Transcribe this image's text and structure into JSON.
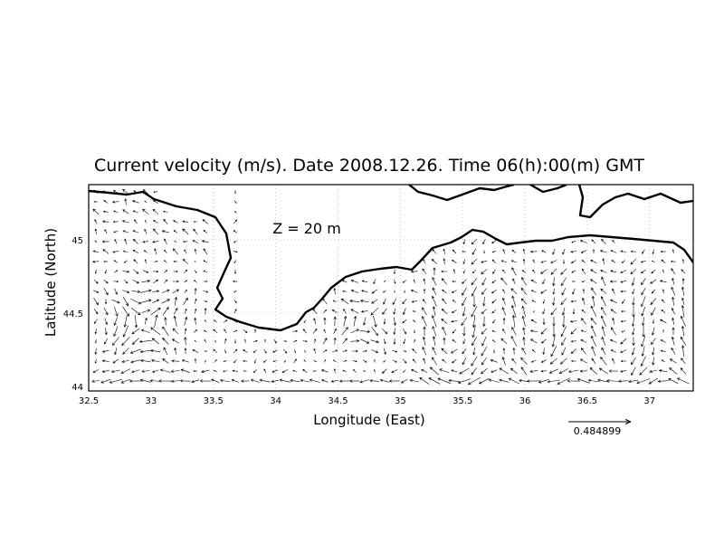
{
  "title": "Current velocity (m/s). Date 2008.12.26. Time 06(h):00(m) GMT",
  "depth_label": "Z = 20 m",
  "x_axis": {
    "label": "Longitude (East)",
    "ticks": [
      "32.5",
      "33",
      "33.5",
      "34",
      "34.5",
      "35",
      "35.5",
      "36",
      "36.5",
      "37"
    ]
  },
  "y_axis": {
    "label": "Latitude (North)",
    "ticks": [
      "44",
      "44.5",
      "45"
    ]
  },
  "reference_vector": {
    "label": "0.484899",
    "magnitude": 0.484899
  },
  "colors": {
    "ink": "#000000",
    "grid": "#bdbdbd",
    "background": "#ffffff"
  }
}
